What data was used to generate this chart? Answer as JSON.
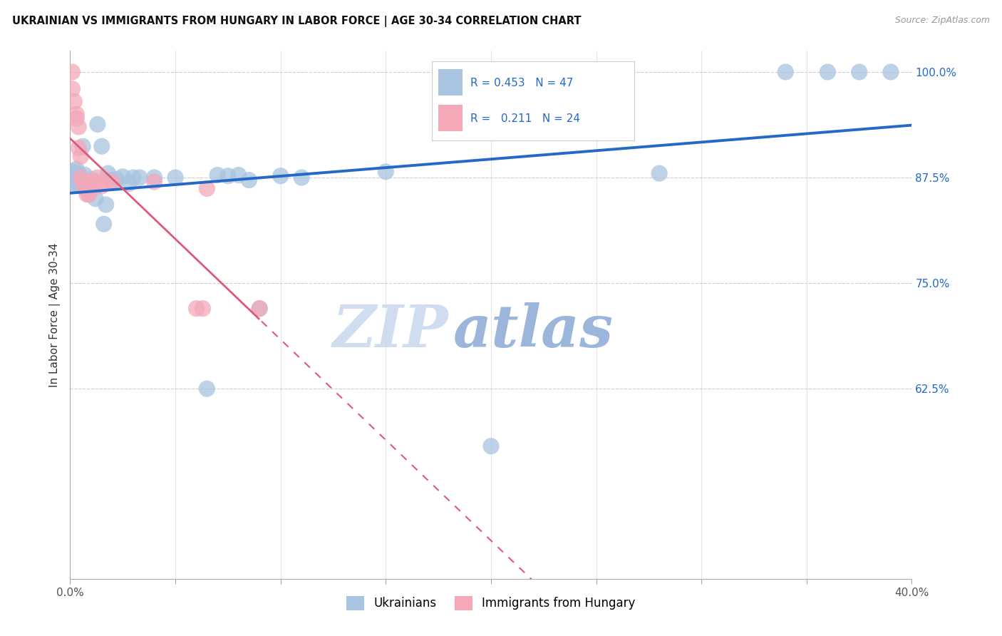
{
  "title": "UKRAINIAN VS IMMIGRANTS FROM HUNGARY IN LABOR FORCE | AGE 30-34 CORRELATION CHART",
  "source": "Source: ZipAtlas.com",
  "ylabel": "In Labor Force | Age 30-34",
  "xlim": [
    0.0,
    0.4
  ],
  "ylim": [
    0.4,
    1.025
  ],
  "xticks": [
    0.0,
    0.05,
    0.1,
    0.15,
    0.2,
    0.25,
    0.3,
    0.35,
    0.4
  ],
  "xticklabels": [
    "0.0%",
    "",
    "",
    "",
    "",
    "",
    "",
    "",
    "40.0%"
  ],
  "yticks": [
    0.625,
    0.75,
    0.875,
    1.0
  ],
  "yticklabels": [
    "62.5%",
    "75.0%",
    "87.5%",
    "100.0%"
  ],
  "blue_R": 0.453,
  "blue_N": 47,
  "pink_R": 0.211,
  "pink_N": 24,
  "blue_color": "#a8c4e0",
  "pink_color": "#f4a8b8",
  "blue_line_color": "#2468c8",
  "pink_line_color": "#e05878",
  "legend1": "Ukrainians",
  "legend2": "Immigrants from Hungary",
  "watermark_zip": "ZIP",
  "watermark_atlas": "atlas",
  "blue_x": [
    0.001,
    0.001,
    0.002,
    0.002,
    0.003,
    0.003,
    0.003,
    0.003,
    0.004,
    0.004,
    0.004,
    0.005,
    0.005,
    0.006,
    0.007,
    0.008,
    0.009,
    0.01,
    0.012,
    0.013,
    0.015,
    0.016,
    0.017,
    0.018,
    0.019,
    0.022,
    0.025,
    0.028,
    0.03,
    0.033,
    0.04,
    0.05,
    0.065,
    0.07,
    0.075,
    0.08,
    0.085,
    0.09,
    0.1,
    0.11,
    0.15,
    0.2,
    0.28,
    0.34,
    0.36,
    0.375,
    0.39
  ],
  "blue_y": [
    0.876,
    0.882,
    0.875,
    0.868,
    0.885,
    0.878,
    0.873,
    0.866,
    0.88,
    0.875,
    0.87,
    0.875,
    0.865,
    0.912,
    0.878,
    0.862,
    0.856,
    0.873,
    0.85,
    0.938,
    0.912,
    0.82,
    0.843,
    0.88,
    0.872,
    0.873,
    0.876,
    0.868,
    0.875,
    0.875,
    0.875,
    0.875,
    0.625,
    0.878,
    0.877,
    0.878,
    0.872,
    0.72,
    0.877,
    0.875,
    0.882,
    0.557,
    0.88,
    1.0,
    1.0,
    1.0,
    1.0
  ],
  "pink_x": [
    0.001,
    0.001,
    0.002,
    0.003,
    0.003,
    0.004,
    0.004,
    0.005,
    0.005,
    0.006,
    0.007,
    0.008,
    0.009,
    0.01,
    0.012,
    0.013,
    0.015,
    0.016,
    0.02,
    0.04,
    0.06,
    0.063,
    0.065,
    0.09
  ],
  "pink_y": [
    1.0,
    0.98,
    0.965,
    0.95,
    0.945,
    0.935,
    0.91,
    0.9,
    0.875,
    0.87,
    0.862,
    0.855,
    0.855,
    0.87,
    0.87,
    0.875,
    0.865,
    0.868,
    0.87,
    0.87,
    0.72,
    0.72,
    0.862,
    0.72
  ]
}
